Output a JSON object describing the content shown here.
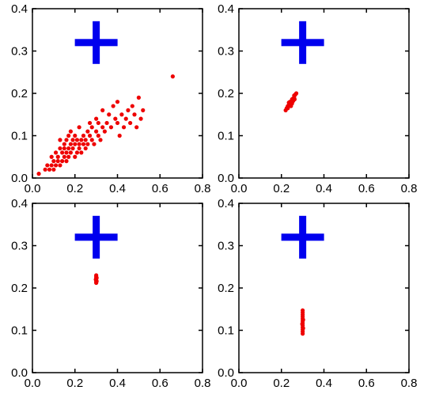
{
  "chart_data": [
    {
      "type": "scatter",
      "xlim": [
        0,
        0.8
      ],
      "ylim": [
        0,
        0.4
      ],
      "x_ticks": [
        0.0,
        0.2,
        0.4,
        0.6,
        0.8
      ],
      "y_ticks": [
        0.0,
        0.1,
        0.2,
        0.3,
        0.4
      ],
      "x_tick_labels": [
        "0.0",
        "0.2",
        "0.4",
        "0.6",
        "0.8"
      ],
      "y_tick_labels": [
        "0.0",
        "0.1",
        "0.2",
        "0.3",
        "0.4"
      ],
      "grid": false,
      "marker": {
        "x": 0.3,
        "y": 0.32,
        "shape": "plus",
        "color": "#0000ee"
      },
      "series": [
        {
          "color": "#ee0000",
          "points": [
            [
              0.03,
              0.01
            ],
            [
              0.06,
              0.02
            ],
            [
              0.07,
              0.03
            ],
            [
              0.08,
              0.02
            ],
            [
              0.09,
              0.03
            ],
            [
              0.09,
              0.05
            ],
            [
              0.1,
              0.02
            ],
            [
              0.1,
              0.04
            ],
            [
              0.11,
              0.03
            ],
            [
              0.11,
              0.06
            ],
            [
              0.12,
              0.04
            ],
            [
              0.12,
              0.05
            ],
            [
              0.13,
              0.03
            ],
            [
              0.13,
              0.07
            ],
            [
              0.13,
              0.09
            ],
            [
              0.14,
              0.04
            ],
            [
              0.14,
              0.06
            ],
            [
              0.15,
              0.05
            ],
            [
              0.15,
              0.07
            ],
            [
              0.15,
              0.08
            ],
            [
              0.16,
              0.04
            ],
            [
              0.16,
              0.06
            ],
            [
              0.16,
              0.09
            ],
            [
              0.17,
              0.05
            ],
            [
              0.17,
              0.07
            ],
            [
              0.17,
              0.1
            ],
            [
              0.18,
              0.06
            ],
            [
              0.18,
              0.08
            ],
            [
              0.19,
              0.07
            ],
            [
              0.19,
              0.09
            ],
            [
              0.2,
              0.05
            ],
            [
              0.2,
              0.08
            ],
            [
              0.2,
              0.1
            ],
            [
              0.21,
              0.06
            ],
            [
              0.21,
              0.09
            ],
            [
              0.22,
              0.08
            ],
            [
              0.22,
              0.07
            ],
            [
              0.23,
              0.09
            ],
            [
              0.23,
              0.06
            ],
            [
              0.24,
              0.08
            ],
            [
              0.24,
              0.1
            ],
            [
              0.25,
              0.07
            ],
            [
              0.25,
              0.09
            ],
            [
              0.26,
              0.08
            ],
            [
              0.26,
              0.11
            ],
            [
              0.27,
              0.1
            ],
            [
              0.28,
              0.09
            ],
            [
              0.28,
              0.12
            ],
            [
              0.29,
              0.08
            ],
            [
              0.3,
              0.11
            ],
            [
              0.3,
              0.14
            ],
            [
              0.31,
              0.1
            ],
            [
              0.31,
              0.13
            ],
            [
              0.32,
              0.09
            ],
            [
              0.33,
              0.12
            ],
            [
              0.33,
              0.16
            ],
            [
              0.34,
              0.11
            ],
            [
              0.35,
              0.13
            ],
            [
              0.36,
              0.15
            ],
            [
              0.37,
              0.12
            ],
            [
              0.38,
              0.17
            ],
            [
              0.39,
              0.14
            ],
            [
              0.4,
              0.13
            ],
            [
              0.4,
              0.18
            ],
            [
              0.41,
              0.1
            ],
            [
              0.42,
              0.15
            ],
            [
              0.43,
              0.12
            ],
            [
              0.44,
              0.14
            ],
            [
              0.45,
              0.16
            ],
            [
              0.46,
              0.13
            ],
            [
              0.47,
              0.17
            ],
            [
              0.48,
              0.15
            ],
            [
              0.49,
              0.12
            ],
            [
              0.5,
              0.19
            ],
            [
              0.51,
              0.14
            ],
            [
              0.52,
              0.16
            ],
            [
              0.66,
              0.24
            ],
            [
              0.18,
              0.11
            ],
            [
              0.22,
              0.12
            ],
            [
              0.27,
              0.13
            ]
          ]
        }
      ]
    },
    {
      "type": "scatter",
      "xlim": [
        0,
        0.8
      ],
      "ylim": [
        0,
        0.4
      ],
      "x_ticks": [
        0.0,
        0.2,
        0.4,
        0.6,
        0.8
      ],
      "y_ticks": [
        0.0,
        0.1,
        0.2,
        0.3,
        0.4
      ],
      "x_tick_labels": [
        "0.0",
        "0.2",
        "0.4",
        "0.6",
        "0.8"
      ],
      "y_tick_labels": [
        "0.0",
        "0.1",
        "0.2",
        "0.3",
        "0.4"
      ],
      "grid": false,
      "marker": {
        "x": 0.3,
        "y": 0.32,
        "shape": "plus",
        "color": "#0000ee"
      },
      "series": [
        {
          "color": "#ee0000",
          "points": [
            [
              0.22,
              0.16
            ],
            [
              0.225,
              0.165
            ],
            [
              0.23,
              0.17
            ],
            [
              0.235,
              0.172
            ],
            [
              0.24,
              0.175
            ],
            [
              0.24,
              0.18
            ],
            [
              0.245,
              0.178
            ],
            [
              0.25,
              0.183
            ],
            [
              0.25,
              0.186
            ],
            [
              0.255,
              0.188
            ],
            [
              0.26,
              0.19
            ],
            [
              0.26,
              0.195
            ],
            [
              0.265,
              0.197
            ],
            [
              0.27,
              0.2
            ],
            [
              0.23,
              0.165
            ],
            [
              0.245,
              0.17
            ],
            [
              0.235,
              0.178
            ],
            [
              0.25,
              0.176
            ],
            [
              0.255,
              0.182
            ],
            [
              0.262,
              0.186
            ]
          ]
        }
      ]
    },
    {
      "type": "scatter",
      "xlim": [
        0,
        0.8
      ],
      "ylim": [
        0,
        0.4
      ],
      "x_ticks": [
        0.0,
        0.2,
        0.4,
        0.6,
        0.8
      ],
      "y_ticks": [
        0.0,
        0.1,
        0.2,
        0.3,
        0.4
      ],
      "x_tick_labels": [
        "0.0",
        "0.2",
        "0.4",
        "0.6",
        "0.8"
      ],
      "y_tick_labels": [
        "0.0",
        "0.1",
        "0.2",
        "0.3",
        "0.4"
      ],
      "grid": false,
      "marker": {
        "x": 0.3,
        "y": 0.32,
        "shape": "plus",
        "color": "#0000ee"
      },
      "series": [
        {
          "color": "#ee0000",
          "points": [
            [
              0.3,
              0.212
            ],
            [
              0.3,
              0.215
            ],
            [
              0.3,
              0.218
            ],
            [
              0.3,
              0.221
            ],
            [
              0.3,
              0.224
            ],
            [
              0.3,
              0.227
            ],
            [
              0.3,
              0.23
            ],
            [
              0.302,
              0.216
            ],
            [
              0.298,
              0.22
            ],
            [
              0.302,
              0.224
            ]
          ]
        }
      ]
    },
    {
      "type": "scatter",
      "xlim": [
        0,
        0.8
      ],
      "ylim": [
        0,
        0.4
      ],
      "x_ticks": [
        0.0,
        0.2,
        0.4,
        0.6,
        0.8
      ],
      "y_ticks": [
        0.0,
        0.1,
        0.2,
        0.3,
        0.4
      ],
      "x_tick_labels": [
        "0.0",
        "0.2",
        "0.4",
        "0.6",
        "0.8"
      ],
      "y_tick_labels": [
        "0.0",
        "0.1",
        "0.2",
        "0.3",
        "0.4"
      ],
      "grid": false,
      "marker": {
        "x": 0.3,
        "y": 0.32,
        "shape": "plus",
        "color": "#0000ee"
      },
      "series": [
        {
          "color": "#ee0000",
          "points": [
            [
              0.3,
              0.092
            ],
            [
              0.3,
              0.097
            ],
            [
              0.3,
              0.102
            ],
            [
              0.3,
              0.107
            ],
            [
              0.3,
              0.112
            ],
            [
              0.3,
              0.117
            ],
            [
              0.3,
              0.122
            ],
            [
              0.3,
              0.127
            ],
            [
              0.3,
              0.132
            ],
            [
              0.3,
              0.137
            ],
            [
              0.3,
              0.142
            ],
            [
              0.3,
              0.147
            ],
            [
              0.302,
              0.105
            ],
            [
              0.298,
              0.115
            ],
            [
              0.302,
              0.125
            ]
          ]
        }
      ]
    }
  ]
}
